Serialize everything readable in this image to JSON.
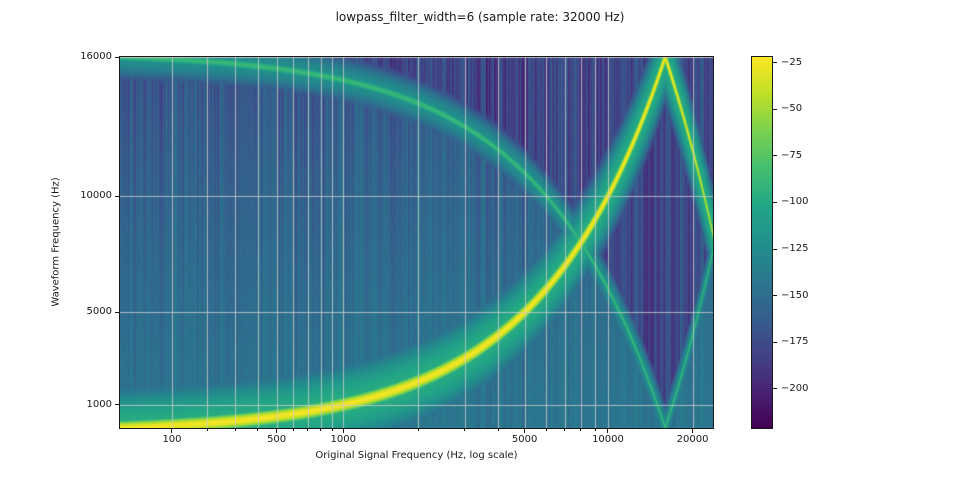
{
  "figure": {
    "title": "lowpass_filter_width=6 (sample rate: 32000 Hz)",
    "x_axis": {
      "label": "Original Signal Frequency (Hz, log scale)",
      "ticks": [
        {
          "value": 100,
          "label": "100"
        },
        {
          "value": 500,
          "label": "500"
        },
        {
          "value": 1000,
          "label": "1000"
        },
        {
          "value": 5000,
          "label": "5000"
        },
        {
          "value": 10000,
          "label": "10000"
        },
        {
          "value": 20000,
          "label": "20000"
        }
      ],
      "minor_ticks": [
        200,
        300,
        400,
        600,
        700,
        800,
        900,
        2000,
        3000,
        4000,
        6000,
        7000,
        8000,
        9000
      ],
      "scale": "logarithmic with +201 Hz offset"
    },
    "y_axis": {
      "label": "Waveform Frequency (Hz)",
      "ticks": [
        {
          "value": 16000,
          "label": "16000"
        },
        {
          "value": 10000,
          "label": "10000"
        },
        {
          "value": 5000,
          "label": "5000"
        },
        {
          "value": 1000,
          "label": "1000"
        }
      ],
      "range": [
        0,
        16000
      ]
    },
    "colorbar": {
      "colormap": "viridis",
      "vmax": -22,
      "vmin": -221,
      "ticks": [
        {
          "value": -25,
          "label": "−25"
        },
        {
          "value": -50,
          "label": "−50"
        },
        {
          "value": -75,
          "label": "−75"
        },
        {
          "value": -100,
          "label": "−100"
        },
        {
          "value": -125,
          "label": "−125"
        },
        {
          "value": -150,
          "label": "−150"
        },
        {
          "value": -175,
          "label": "−175"
        },
        {
          "value": -200,
          "label": "−200"
        }
      ]
    }
  },
  "chart_data": {
    "type": "heatmap",
    "title": "lowpass_filter_width=6 (sample rate: 32000 Hz)",
    "xlabel": "Original Signal Frequency (Hz, log scale)",
    "ylabel": "Waveform Frequency (Hz)",
    "value_unit": "dB",
    "sample_rate_hz": 32000,
    "nyquist_hz": 16000,
    "sweep_log_offset_hz": 201,
    "x_range_hz": [
      0,
      23600
    ],
    "y_range_hz": [
      0,
      16000
    ],
    "x_tick_values": [
      100,
      500,
      1000,
      5000,
      10000,
      20000
    ],
    "y_tick_values": [
      16000,
      10000,
      5000,
      1000
    ],
    "colorbar_tick_values": [
      -25,
      -50,
      -75,
      -100,
      -125,
      -150,
      -175,
      -200
    ],
    "components": [
      {
        "name": "fundamental_sweep",
        "relation": "y = x, aliased to y = 32000 - x above the Nyquist frequency",
        "peak_db": -25,
        "alias_fade_db": 25,
        "core_sigma_hz": 280,
        "glow_db": -96,
        "glow_sigma_hz": 1650
      },
      {
        "name": "mirror_image",
        "relation": "y = |16000 - x|",
        "peak_db": -88,
        "core_sigma_hz": 230,
        "glow_db": -121,
        "glow_sigma_hz": 850
      },
      {
        "name": "noise_floor",
        "mean_db": -145,
        "streak_range_db": [
          -205,
          -136
        ],
        "description": "vertical noise streaks, darker above the mirror-image line and toward high frequencies"
      }
    ],
    "grid": true,
    "legend_position": "colorbar-right"
  }
}
